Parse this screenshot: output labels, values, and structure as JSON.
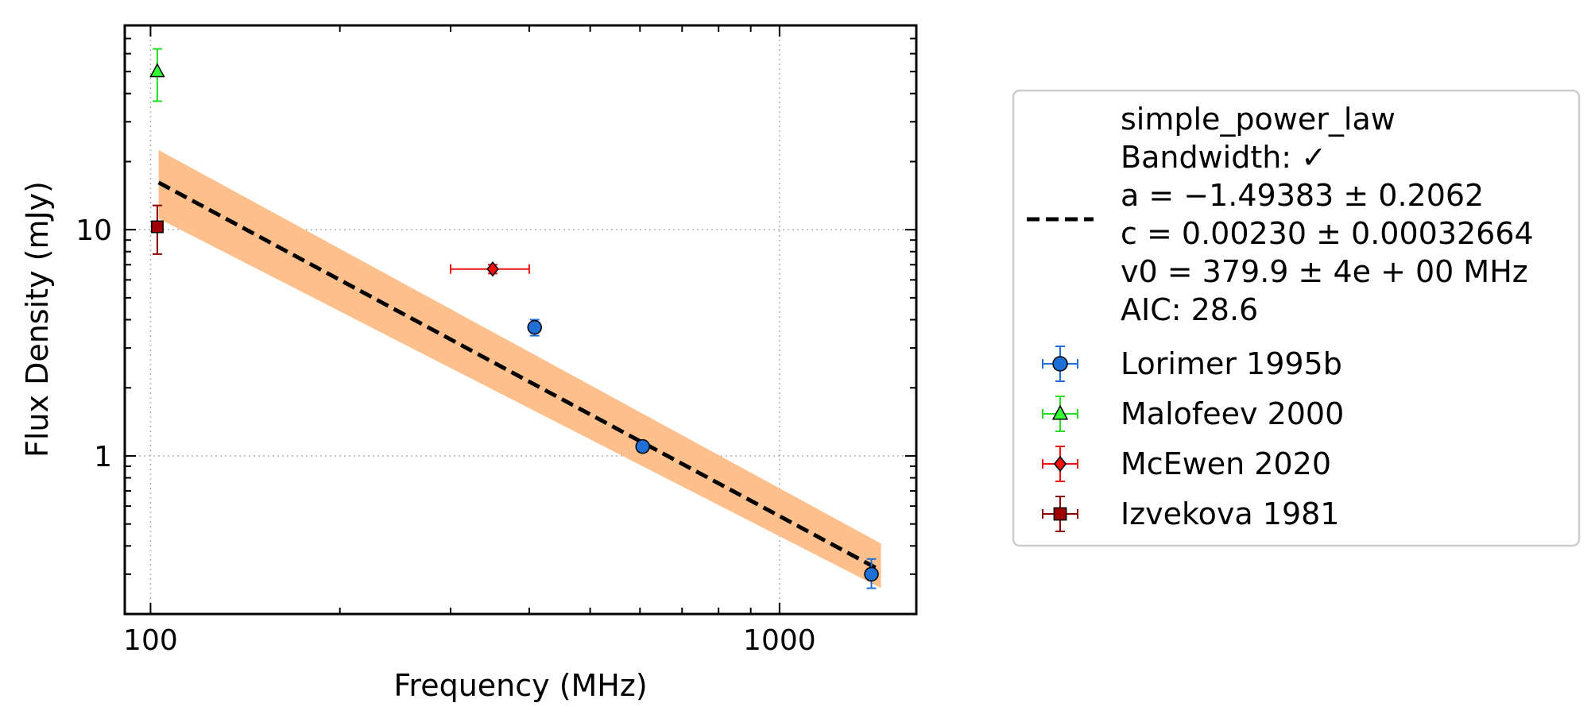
{
  "chart_data": {
    "type": "scatter",
    "xlabel": "Frequency (MHz)",
    "ylabel": "Flux Density (mJy)",
    "xscale": "log",
    "yscale": "log",
    "xlim": [
      91,
      1650
    ],
    "ylim": [
      0.2,
      80
    ],
    "x_ticks": [
      {
        "value": 100,
        "label": "100"
      },
      {
        "value": 1000,
        "label": "1000"
      }
    ],
    "y_ticks": [
      {
        "value": 1,
        "label": "1"
      },
      {
        "value": 10,
        "label": "10"
      }
    ],
    "grid": true,
    "legend_position": "outside-right",
    "fit": {
      "name": "simple_power_law",
      "lines": [
        "simple_power_law",
        "Bandwidth: ✓",
        "a = −1.49383 ± 0.2062",
        "c = 0.00230 ± 0.00032664",
        "v0 = 379.9 ± 4e + 00 MHz",
        "AIC: 28.6"
      ],
      "a": -1.49383,
      "c": 0.0023,
      "v0": 379.9,
      "x_range": [
        103,
        1450
      ],
      "band_lower": [
        {
          "x": 103,
          "y": 11.2
        },
        {
          "x": 1450,
          "y": 0.26
        }
      ],
      "band_upper": [
        {
          "x": 103,
          "y": 22.5
        },
        {
          "x": 1450,
          "y": 0.41
        }
      ],
      "line_color": "#000000",
      "band_color": "#fdbf8c"
    },
    "series": [
      {
        "name": "Lorimer 1995b",
        "marker": "circle",
        "color": "#1f6fd6",
        "ecolor": "#1f6fd6",
        "points": [
          {
            "x": 408,
            "y": 3.7,
            "ylo": 3.4,
            "yhi": 4.0
          },
          {
            "x": 606,
            "y": 1.1,
            "ylo": 1.05,
            "yhi": 1.15
          },
          {
            "x": 1400,
            "y": 0.3,
            "ylo": 0.26,
            "yhi": 0.35
          }
        ]
      },
      {
        "name": "Malofeev 2000",
        "marker": "triangle",
        "color": "#33ff33",
        "ecolor": "#22dd22",
        "points": [
          {
            "x": 102.5,
            "y": 50,
            "ylo": 37,
            "yhi": 63
          }
        ]
      },
      {
        "name": "McEwen 2020",
        "marker": "diamond",
        "color": "#ee1111",
        "ecolor": "#ee1111",
        "points": [
          {
            "x": 350,
            "y": 6.7,
            "xlo": 300,
            "xhi": 400,
            "ylo": 6.4,
            "yhi": 7.0
          }
        ]
      },
      {
        "name": "Izvekova 1981",
        "marker": "square",
        "color": "#a00000",
        "ecolor": "#8b0000",
        "points": [
          {
            "x": 102.5,
            "y": 10.3,
            "ylo": 7.8,
            "yhi": 12.8
          }
        ]
      }
    ]
  }
}
